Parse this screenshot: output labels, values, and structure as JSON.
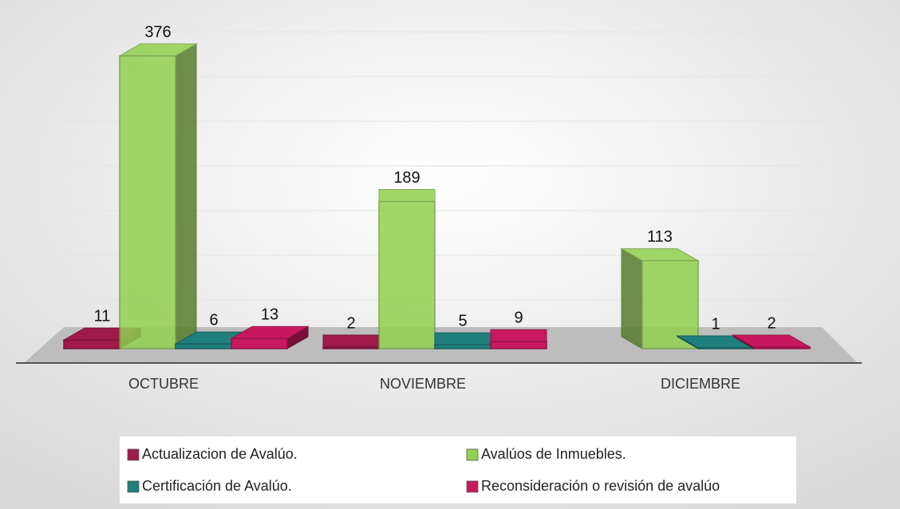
{
  "chart_data": {
    "type": "bar3d",
    "categories": [
      "OCTUBRE",
      "NOVIEMBRE",
      "DICIEMBRE"
    ],
    "series": [
      {
        "name": "Actualizacion de Avalúo.",
        "color": "#a01a4c",
        "values": [
          11,
          2,
          null
        ]
      },
      {
        "name": "Avalúos de Inmuebles.",
        "color": "#92d050",
        "values": [
          376,
          189,
          113
        ]
      },
      {
        "name": "Certificación de Avalúo.",
        "color": "#1f7f7c",
        "values": [
          6,
          5,
          1
        ]
      },
      {
        "name": "Reconsideración o revisión de avalúo",
        "color": "#c8195e",
        "values": [
          13,
          9,
          2
        ]
      }
    ],
    "legend": "bottom"
  }
}
